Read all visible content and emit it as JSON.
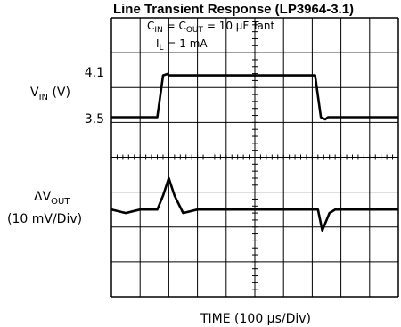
{
  "chart_data": {
    "type": "line",
    "title": "Line Transient Response (LP3964-3.1)",
    "annotations": {
      "cin": "C",
      "cin_sub": "IN",
      "eq1": " = C",
      "cout_sub": "OUT",
      "eq2": " = 10 μF Tant",
      "il": "I",
      "il_sub": "L",
      "il_val": " = 1 mA"
    },
    "vin_axis": {
      "label": "V",
      "label_sub": "IN",
      "label_unit": " (V)",
      "ticks": [
        "4.1",
        "3.5"
      ]
    },
    "vout_axis": {
      "label": "ΔV",
      "label_sub": "OUT",
      "label_unit": "(10 mV/Div)"
    },
    "xlabel": "TIME (100 μs/Div)",
    "x_divisions": 10,
    "y_divisions": 8,
    "grid": true,
    "series": [
      {
        "name": "VIN",
        "unit": "V",
        "x": [
          0,
          1.6,
          1.8,
          1.95,
          2.0,
          7.1,
          7.3,
          7.45,
          7.55,
          10
        ],
        "y": [
          3.5,
          3.5,
          4.1,
          4.12,
          4.1,
          4.1,
          3.5,
          3.47,
          3.5,
          3.5
        ]
      },
      {
        "name": "ΔVOUT",
        "unit": "mV",
        "x": [
          0,
          0.5,
          1.0,
          1.6,
          1.8,
          2.0,
          2.2,
          2.5,
          3.0,
          7.0,
          7.2,
          7.35,
          7.6,
          7.8,
          8.0,
          10
        ],
        "y": [
          0,
          -1,
          0,
          0,
          4,
          9,
          4,
          -1,
          0,
          0,
          0,
          -6,
          -1,
          0,
          0,
          0
        ]
      }
    ]
  }
}
